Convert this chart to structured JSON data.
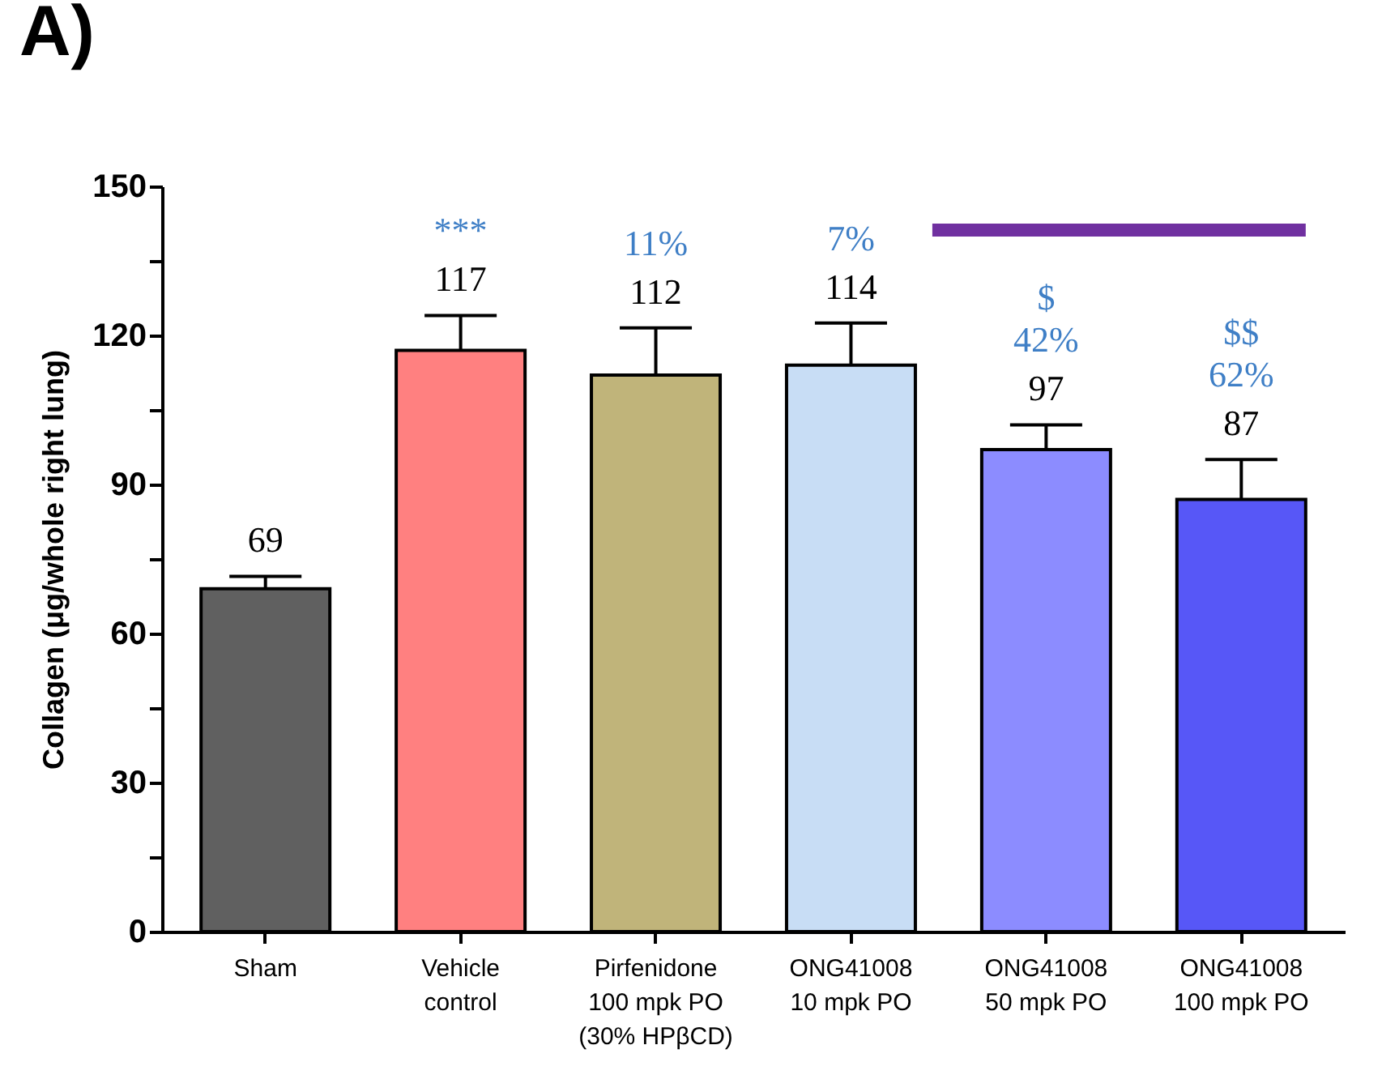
{
  "chart_data": {
    "type": "bar",
    "title": "A)",
    "ylabel": "Collagen (μg/whole right lung)",
    "categories": [
      "Sham",
      "Vehicle\ncontrol",
      "Pirfenidone\n100 mpk PO\n(30% HPβCD)",
      "ONG41008\n10 mpk PO",
      "ONG41008\n50 mpk PO",
      "ONG41008\n100 mpk PO"
    ],
    "values": [
      69,
      117,
      112,
      114,
      97,
      87
    ],
    "colors": [
      "#606060",
      "#ff8080",
      "#c0b47a",
      "#c8ddf5",
      "#8c8cff",
      "#5757f7"
    ],
    "errors": [
      [
        69,
        71.5
      ],
      [
        117,
        124
      ],
      [
        112,
        121.5
      ],
      [
        114,
        122.5
      ],
      [
        97,
        102
      ],
      [
        87,
        95
      ]
    ],
    "data_labels": true,
    "ylim": [
      0,
      150
    ],
    "yticks": [
      0,
      {
        "value": 15,
        "label": null
      },
      30,
      {
        "value": 45,
        "label": null
      },
      60,
      {
        "value": 75,
        "label": null
      },
      90,
      {
        "value": 105,
        "label": null
      },
      120,
      {
        "value": 135,
        "label": null
      },
      150
    ],
    "grid": false,
    "annotations": [
      "***",
      "11%",
      "7%",
      "$\n42%",
      "$$\n62%"
    ]
  }
}
